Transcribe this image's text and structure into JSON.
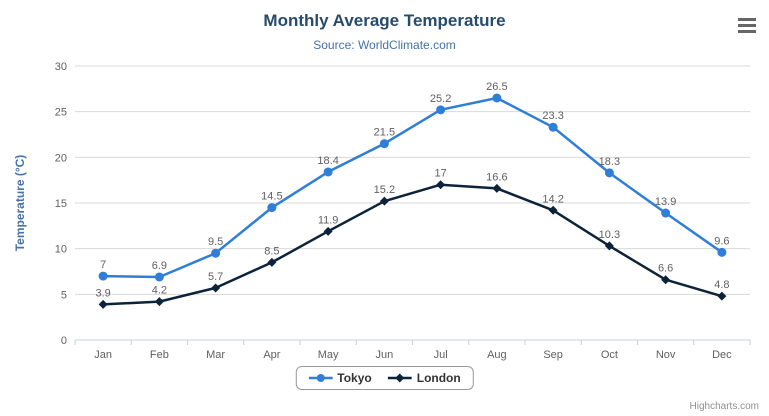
{
  "chart_data": {
    "type": "line",
    "title": "Monthly Average Temperature",
    "subtitle": "Source: WorldClimate.com",
    "categories": [
      "Jan",
      "Feb",
      "Mar",
      "Apr",
      "May",
      "Jun",
      "Jul",
      "Aug",
      "Sep",
      "Oct",
      "Nov",
      "Dec"
    ],
    "series": [
      {
        "name": "Tokyo",
        "marker": "circle",
        "color": "#2f7ed8",
        "values": [
          7,
          6.9,
          9.5,
          14.5,
          18.4,
          21.5,
          25.2,
          26.5,
          23.3,
          18.3,
          13.9,
          9.6
        ]
      },
      {
        "name": "London",
        "marker": "diamond",
        "color": "#0d233a",
        "values": [
          3.9,
          4.2,
          5.7,
          8.5,
          11.9,
          15.2,
          17,
          16.6,
          14.2,
          10.3,
          6.6,
          4.8
        ]
      }
    ],
    "xlabel": "",
    "ylabel": "Temperature (°C)",
    "ylim": [
      0,
      30
    ],
    "tick_interval": 5,
    "grid": "horizontal",
    "legend_position": "bottom",
    "data_labels": true
  },
  "colors": {
    "background": "#ffffff",
    "title": "#274b6d",
    "subtitle": "#4572a7",
    "axis_title": "#4572a7",
    "axis_labels": "#606060",
    "data_labels": "#606060",
    "grid": "#d8d8d8",
    "axis_line": "#c0d0e0",
    "legend_text": "#333333",
    "legend_border": "#999999",
    "credits": "#909090",
    "menu_icon": "#666666"
  },
  "credits": {
    "label": "Highcharts.com"
  }
}
